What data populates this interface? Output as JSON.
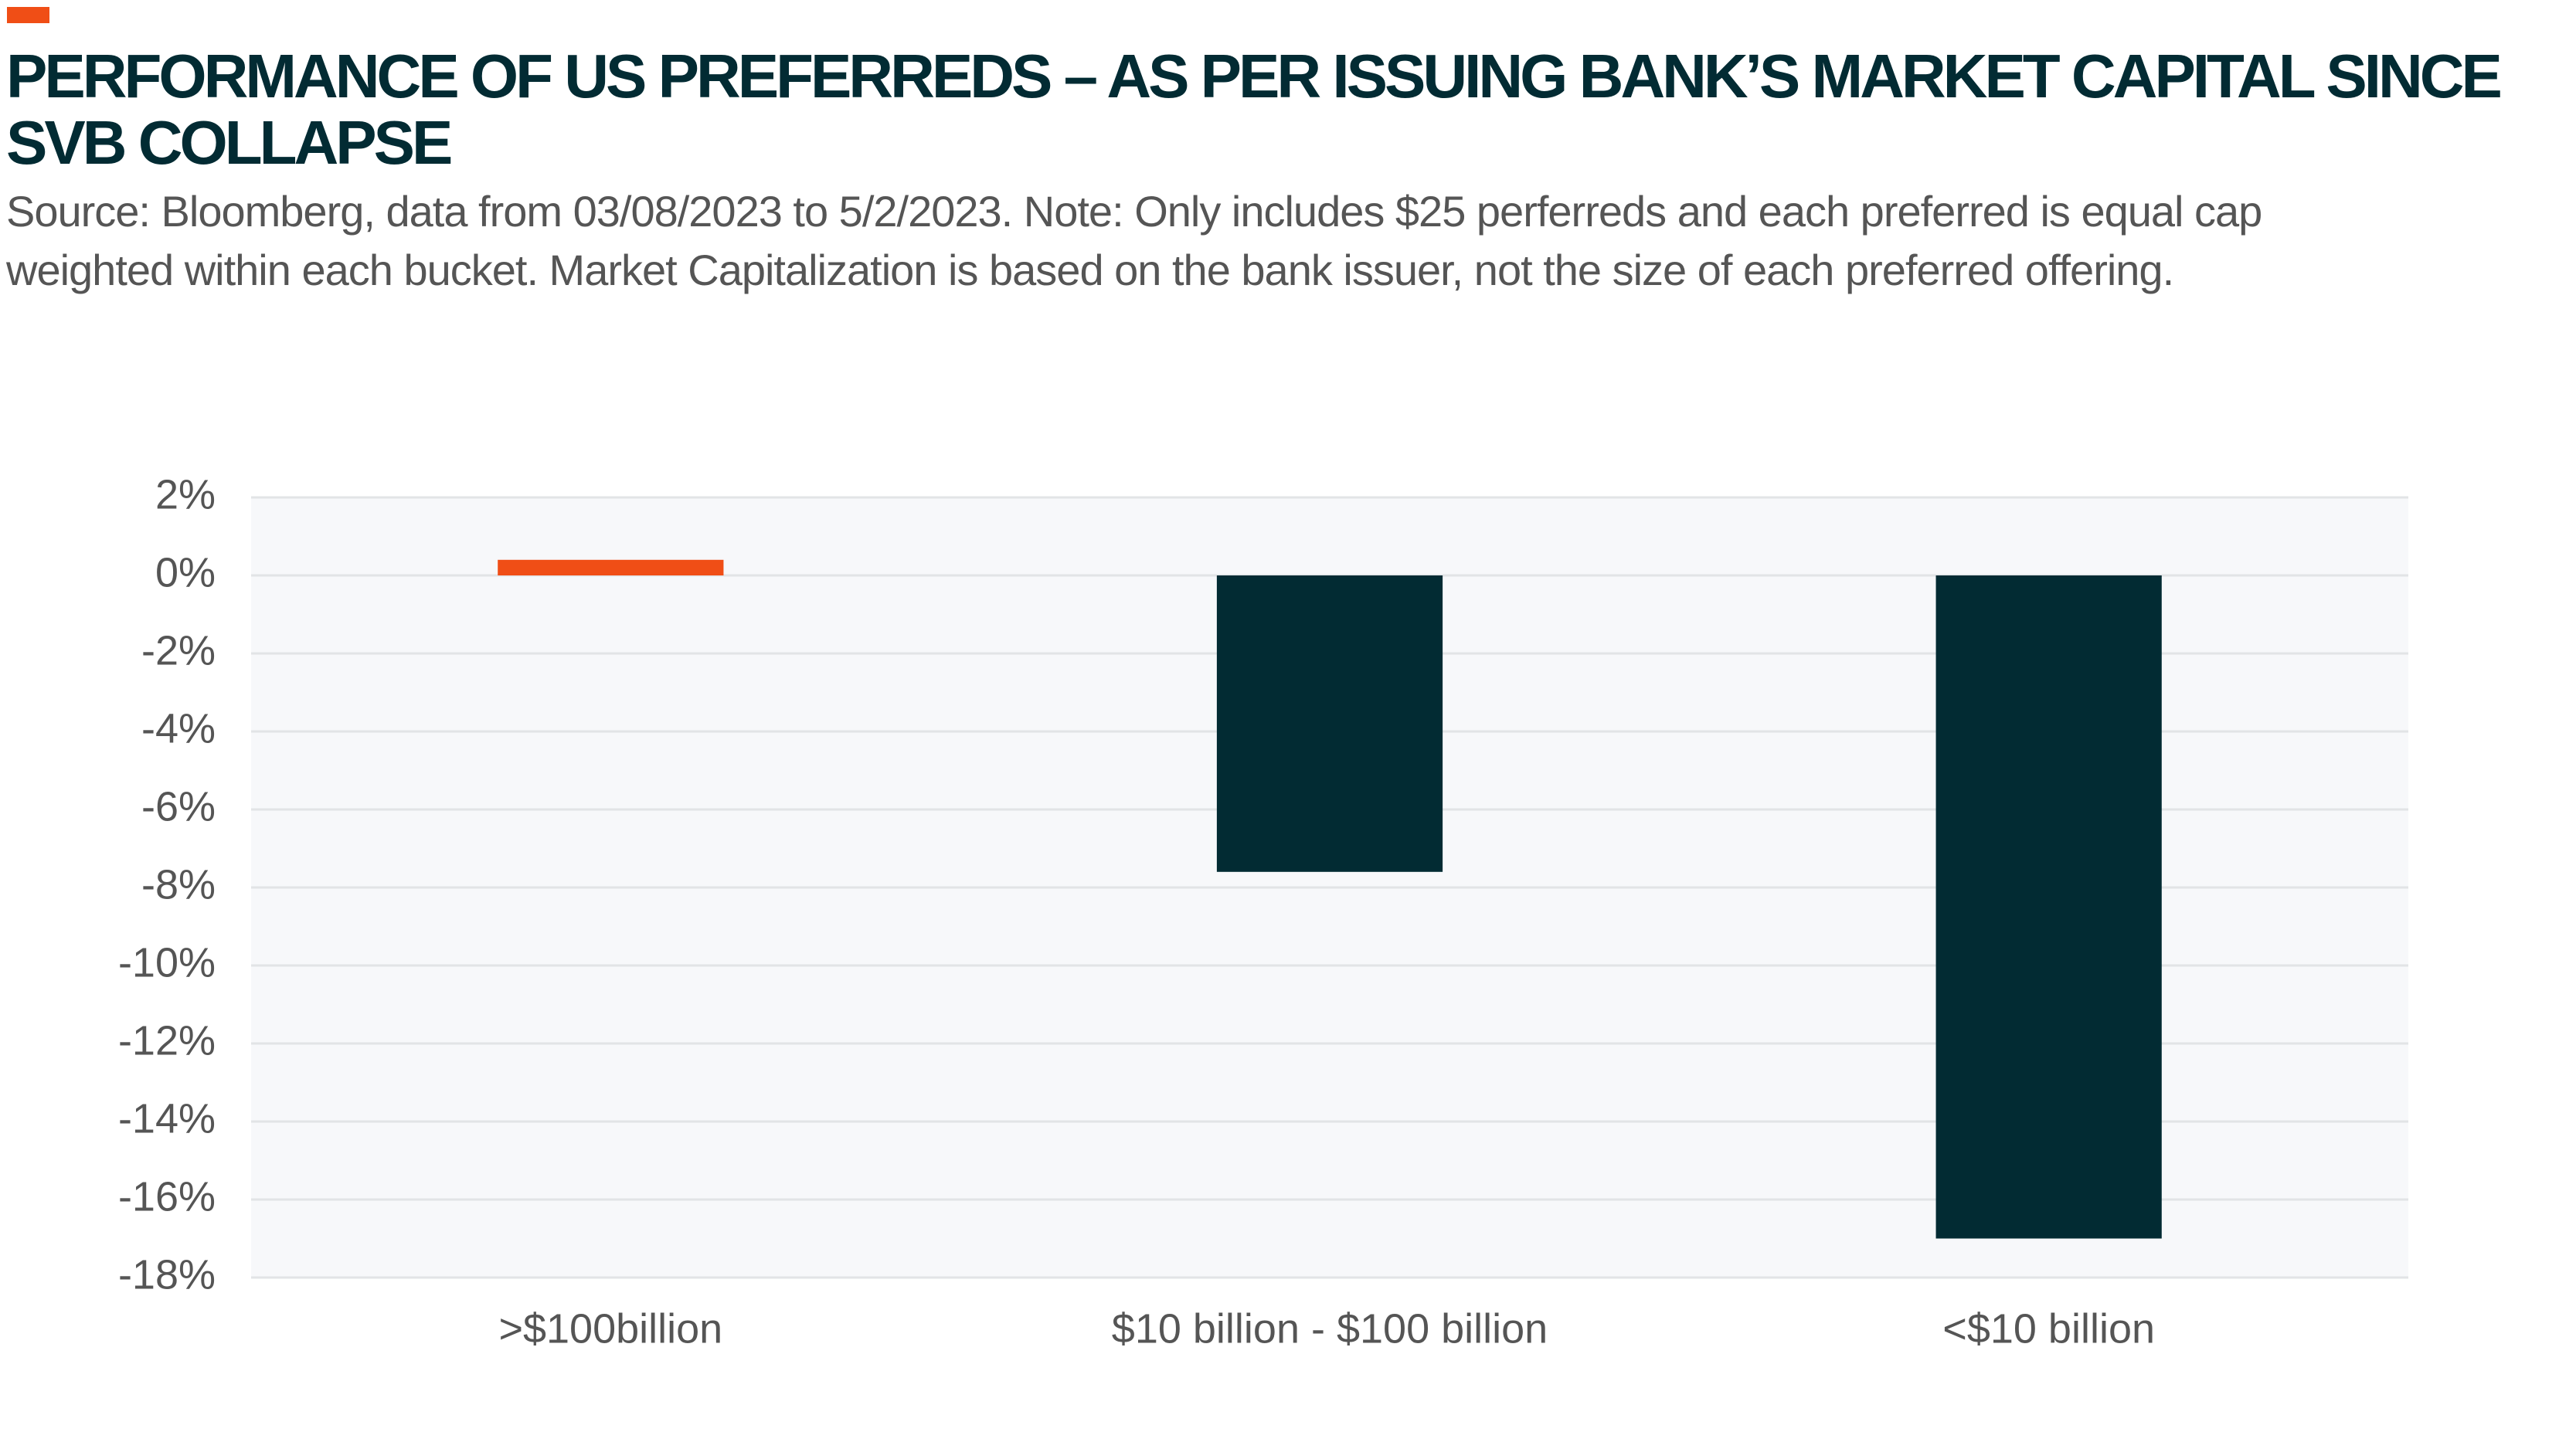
{
  "chart_data": {
    "type": "bar",
    "title": "PERFORMANCE OF US PREFERREDS – AS PER ISSUING BANK’S MARKET CAPITAL SINCE SVB COLLAPSE",
    "subtitle": "Source: Bloomberg, data from 03/08/2023 to 5/2/2023. Note: Only includes $25 perferreds and each preferred is equal cap weighted within each bucket. Market Capitalization is based on the bank issuer, not the size of each preferred offering.",
    "categories": [
      ">$100billion",
      "$10 billion - $100 billion",
      "<$10 billion"
    ],
    "values": [
      0.4,
      -7.6,
      -17.0
    ],
    "colors": [
      "#f04e16",
      "#022b33",
      "#022b33"
    ],
    "ylim": [
      -18,
      2
    ],
    "yticks": [
      {
        "value": 2,
        "label": "2%"
      },
      {
        "value": 0,
        "label": "0%"
      },
      {
        "value": -2,
        "label": "-2%"
      },
      {
        "value": -4,
        "label": "-4%"
      },
      {
        "value": -6,
        "label": "-6%"
      },
      {
        "value": -8,
        "label": "-8%"
      },
      {
        "value": -10,
        "label": "-10%"
      },
      {
        "value": -12,
        "label": "-12%"
      },
      {
        "value": -14,
        "label": "-14%"
      },
      {
        "value": -16,
        "label": "-16%"
      },
      {
        "value": -18,
        "label": "-18%"
      }
    ],
    "grid": true
  }
}
